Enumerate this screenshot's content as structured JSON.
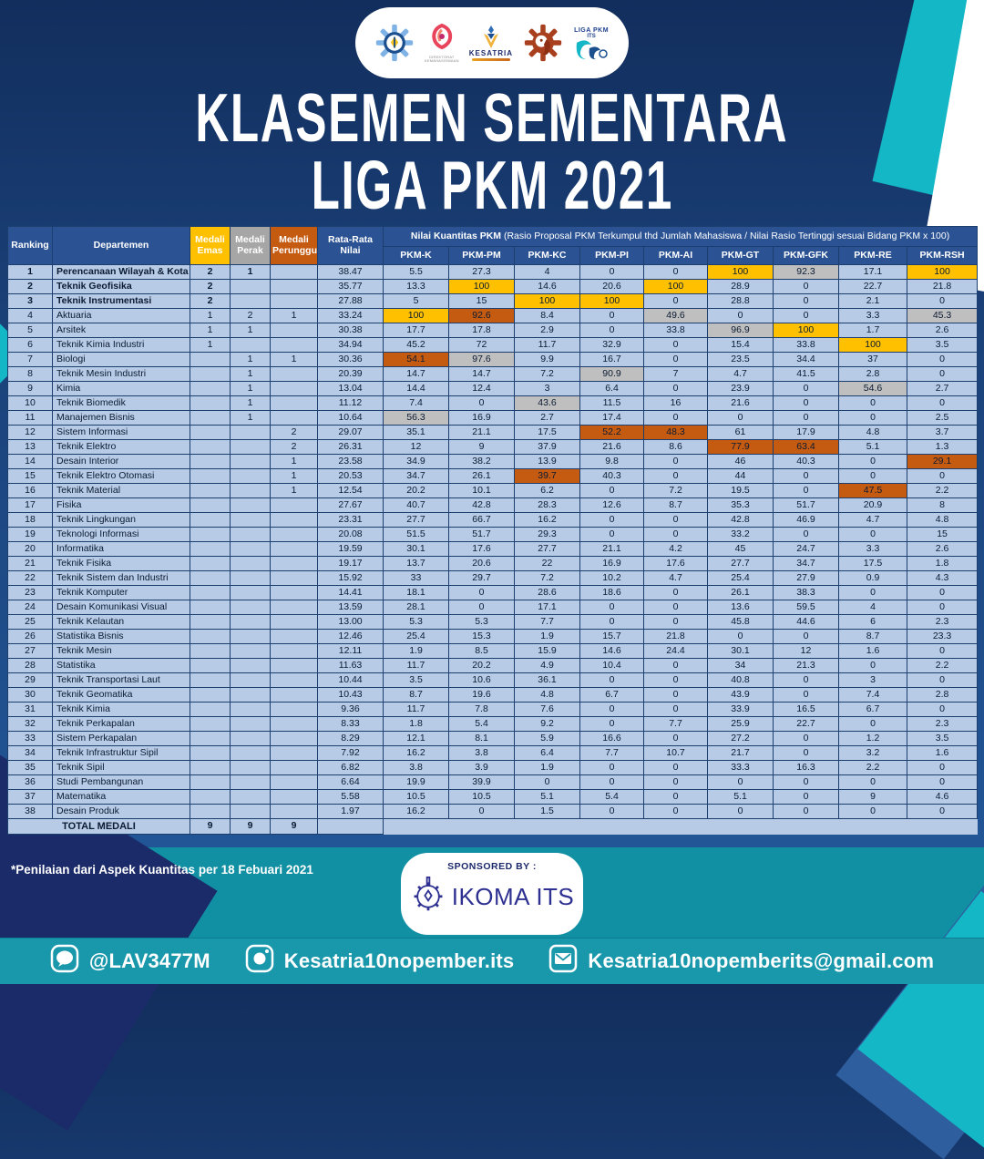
{
  "title": {
    "line1": "KLASEMEN SEMENTARA",
    "line2": "LIGA PKM 2021"
  },
  "logos": {
    "ditmawa_caption1": "DIREKTORAT",
    "ditmawa_caption2": "KEMAHASISWAAN",
    "kesatria_label": "KESATRIA",
    "liga_label1": "LIGA PKM",
    "liga_label2": "ITS"
  },
  "table": {
    "headers": {
      "ranking": "Ranking",
      "departemen": "Departemen",
      "emas": "Medali Emas",
      "perak": "Medali Perak",
      "perunggu": "Medali Perunggu",
      "rata": "Rata-Rata Nilai",
      "pkm_title": "Nilai Kuantitas PKM",
      "pkm_subtitle": " (Rasio Proposal PKM Terkumpul thd Jumlah Mahasiswa / Nilai Rasio Tertinggi sesuai Bidang PKM x 100)"
    },
    "pkm_columns": [
      "PKM-K",
      "PKM-PM",
      "PKM-KC",
      "PKM-PI",
      "PKM-AI",
      "PKM-GT",
      "PKM-GFK",
      "PKM-RE",
      "PKM-RSH"
    ],
    "rows": [
      {
        "rank": "1",
        "dept": "Perencanaan Wilayah & Kota",
        "emas": "2",
        "perak": "1",
        "perunggu": "",
        "rata": "38.47",
        "values": [
          "5.5",
          "27.3",
          "4",
          "0",
          "0",
          "100",
          "92.3",
          "17.1",
          "100"
        ],
        "hl": {
          "5": "g",
          "6": "s",
          "8": "g"
        },
        "bold": true
      },
      {
        "rank": "2",
        "dept": "Teknik Geofisika",
        "emas": "2",
        "perak": "",
        "perunggu": "",
        "rata": "35.77",
        "values": [
          "13.3",
          "100",
          "14.6",
          "20.6",
          "100",
          "28.9",
          "0",
          "22.7",
          "21.8"
        ],
        "hl": {
          "1": "g",
          "4": "g"
        },
        "bold": true
      },
      {
        "rank": "3",
        "dept": "Teknik Instrumentasi",
        "emas": "2",
        "perak": "",
        "perunggu": "",
        "rata": "27.88",
        "values": [
          "5",
          "15",
          "100",
          "100",
          "0",
          "28.8",
          "0",
          "2.1",
          "0"
        ],
        "hl": {
          "2": "g",
          "3": "g"
        },
        "bold": true
      },
      {
        "rank": "4",
        "dept": "Aktuaria",
        "emas": "1",
        "perak": "2",
        "perunggu": "1",
        "rata": "33.24",
        "values": [
          "100",
          "92.6",
          "8.4",
          "0",
          "49.6",
          "0",
          "0",
          "3.3",
          "45.3"
        ],
        "hl": {
          "0": "g",
          "1": "b",
          "4": "s",
          "8": "s"
        },
        "bold": false
      },
      {
        "rank": "5",
        "dept": "Arsitek",
        "emas": "1",
        "perak": "1",
        "perunggu": "",
        "rata": "30.38",
        "values": [
          "17.7",
          "17.8",
          "2.9",
          "0",
          "33.8",
          "96.9",
          "100",
          "1.7",
          "2.6"
        ],
        "hl": {
          "5": "s",
          "6": "g"
        },
        "bold": false
      },
      {
        "rank": "6",
        "dept": "Teknik Kimia Industri",
        "emas": "1",
        "perak": "",
        "perunggu": "",
        "rata": "34.94",
        "values": [
          "45.2",
          "72",
          "11.7",
          "32.9",
          "0",
          "15.4",
          "33.8",
          "100",
          "3.5"
        ],
        "hl": {
          "7": "g"
        },
        "bold": false
      },
      {
        "rank": "7",
        "dept": "Biologi",
        "emas": "",
        "perak": "1",
        "perunggu": "1",
        "rata": "30.36",
        "values": [
          "54.1",
          "97.6",
          "9.9",
          "16.7",
          "0",
          "23.5",
          "34.4",
          "37",
          "0"
        ],
        "hl": {
          "0": "b",
          "1": "s"
        },
        "bold": false
      },
      {
        "rank": "8",
        "dept": "Teknik Mesin Industri",
        "emas": "",
        "perak": "1",
        "perunggu": "",
        "rata": "20.39",
        "values": [
          "14.7",
          "14.7",
          "7.2",
          "90.9",
          "7",
          "4.7",
          "41.5",
          "2.8",
          "0"
        ],
        "hl": {
          "3": "s"
        },
        "bold": false
      },
      {
        "rank": "9",
        "dept": "Kimia",
        "emas": "",
        "perak": "1",
        "perunggu": "",
        "rata": "13.04",
        "values": [
          "14.4",
          "12.4",
          "3",
          "6.4",
          "0",
          "23.9",
          "0",
          "54.6",
          "2.7"
        ],
        "hl": {
          "7": "s"
        },
        "bold": false
      },
      {
        "rank": "10",
        "dept": "Teknik Biomedik",
        "emas": "",
        "perak": "1",
        "perunggu": "",
        "rata": "11.12",
        "values": [
          "7.4",
          "0",
          "43.6",
          "11.5",
          "16",
          "21.6",
          "0",
          "0",
          "0"
        ],
        "hl": {
          "2": "s"
        },
        "bold": false
      },
      {
        "rank": "11",
        "dept": "Manajemen Bisnis",
        "emas": "",
        "perak": "1",
        "perunggu": "",
        "rata": "10.64",
        "values": [
          "56.3",
          "16.9",
          "2.7",
          "17.4",
          "0",
          "0",
          "0",
          "0",
          "2.5"
        ],
        "hl": {
          "0": "s"
        },
        "bold": false
      },
      {
        "rank": "12",
        "dept": "Sistem Informasi",
        "emas": "",
        "perak": "",
        "perunggu": "2",
        "rata": "29.07",
        "values": [
          "35.1",
          "21.1",
          "17.5",
          "52.2",
          "48.3",
          "61",
          "17.9",
          "4.8",
          "3.7"
        ],
        "hl": {
          "3": "b",
          "4": "b"
        },
        "bold": false
      },
      {
        "rank": "13",
        "dept": "Teknik Elektro",
        "emas": "",
        "perak": "",
        "perunggu": "2",
        "rata": "26.31",
        "values": [
          "12",
          "9",
          "37.9",
          "21.6",
          "8.6",
          "77.9",
          "63.4",
          "5.1",
          "1.3"
        ],
        "hl": {
          "5": "b",
          "6": "b"
        },
        "bold": false
      },
      {
        "rank": "14",
        "dept": "Desain Interior",
        "emas": "",
        "perak": "",
        "perunggu": "1",
        "rata": "23.58",
        "values": [
          "34.9",
          "38.2",
          "13.9",
          "9.8",
          "0",
          "46",
          "40.3",
          "0",
          "29.1"
        ],
        "hl": {
          "8": "b"
        },
        "bold": false
      },
      {
        "rank": "15",
        "dept": "Teknik Elektro Otomasi",
        "emas": "",
        "perak": "",
        "perunggu": "1",
        "rata": "20.53",
        "values": [
          "34.7",
          "26.1",
          "39.7",
          "40.3",
          "0",
          "44",
          "0",
          "0",
          "0"
        ],
        "hl": {
          "2": "b"
        },
        "bold": false
      },
      {
        "rank": "16",
        "dept": "Teknik Material",
        "emas": "",
        "perak": "",
        "perunggu": "1",
        "rata": "12.54",
        "values": [
          "20.2",
          "10.1",
          "6.2",
          "0",
          "7.2",
          "19.5",
          "0",
          "47.5",
          "2.2"
        ],
        "hl": {
          "7": "b"
        },
        "bold": false
      },
      {
        "rank": "17",
        "dept": "Fisika",
        "emas": "",
        "perak": "",
        "perunggu": "",
        "rata": "27.67",
        "values": [
          "40.7",
          "42.8",
          "28.3",
          "12.6",
          "8.7",
          "35.3",
          "51.7",
          "20.9",
          "8"
        ],
        "hl": {},
        "bold": false
      },
      {
        "rank": "18",
        "dept": "Teknik Lingkungan",
        "emas": "",
        "perak": "",
        "perunggu": "",
        "rata": "23.31",
        "values": [
          "27.7",
          "66.7",
          "16.2",
          "0",
          "0",
          "42.8",
          "46.9",
          "4.7",
          "4.8"
        ],
        "hl": {},
        "bold": false
      },
      {
        "rank": "19",
        "dept": "Teknologi Informasi",
        "emas": "",
        "perak": "",
        "perunggu": "",
        "rata": "20.08",
        "values": [
          "51.5",
          "51.7",
          "29.3",
          "0",
          "0",
          "33.2",
          "0",
          "0",
          "15"
        ],
        "hl": {},
        "bold": false
      },
      {
        "rank": "20",
        "dept": "Informatika",
        "emas": "",
        "perak": "",
        "perunggu": "",
        "rata": "19.59",
        "values": [
          "30.1",
          "17.6",
          "27.7",
          "21.1",
          "4.2",
          "45",
          "24.7",
          "3.3",
          "2.6"
        ],
        "hl": {},
        "bold": false
      },
      {
        "rank": "21",
        "dept": "Teknik Fisika",
        "emas": "",
        "perak": "",
        "perunggu": "",
        "rata": "19.17",
        "values": [
          "13.7",
          "20.6",
          "22",
          "16.9",
          "17.6",
          "27.7",
          "34.7",
          "17.5",
          "1.8"
        ],
        "hl": {},
        "bold": false
      },
      {
        "rank": "22",
        "dept": "Teknik Sistem dan Industri",
        "emas": "",
        "perak": "",
        "perunggu": "",
        "rata": "15.92",
        "values": [
          "33",
          "29.7",
          "7.2",
          "10.2",
          "4.7",
          "25.4",
          "27.9",
          "0.9",
          "4.3"
        ],
        "hl": {},
        "bold": false
      },
      {
        "rank": "23",
        "dept": "Teknik Komputer",
        "emas": "",
        "perak": "",
        "perunggu": "",
        "rata": "14.41",
        "values": [
          "18.1",
          "0",
          "28.6",
          "18.6",
          "0",
          "26.1",
          "38.3",
          "0",
          "0"
        ],
        "hl": {},
        "bold": false
      },
      {
        "rank": "24",
        "dept": "Desain Komunikasi Visual",
        "emas": "",
        "perak": "",
        "perunggu": "",
        "rata": "13.59",
        "values": [
          "28.1",
          "0",
          "17.1",
          "0",
          "0",
          "13.6",
          "59.5",
          "4",
          "0"
        ],
        "hl": {},
        "bold": false
      },
      {
        "rank": "25",
        "dept": "Teknik Kelautan",
        "emas": "",
        "perak": "",
        "perunggu": "",
        "rata": "13.00",
        "values": [
          "5.3",
          "5.3",
          "7.7",
          "0",
          "0",
          "45.8",
          "44.6",
          "6",
          "2.3"
        ],
        "hl": {},
        "bold": false
      },
      {
        "rank": "26",
        "dept": "Statistika Bisnis",
        "emas": "",
        "perak": "",
        "perunggu": "",
        "rata": "12.46",
        "values": [
          "25.4",
          "15.3",
          "1.9",
          "15.7",
          "21.8",
          "0",
          "0",
          "8.7",
          "23.3"
        ],
        "hl": {},
        "bold": false
      },
      {
        "rank": "27",
        "dept": "Teknik Mesin",
        "emas": "",
        "perak": "",
        "perunggu": "",
        "rata": "12.11",
        "values": [
          "1.9",
          "8.5",
          "15.9",
          "14.6",
          "24.4",
          "30.1",
          "12",
          "1.6",
          "0"
        ],
        "hl": {},
        "bold": false
      },
      {
        "rank": "28",
        "dept": "Statistika",
        "emas": "",
        "perak": "",
        "perunggu": "",
        "rata": "11.63",
        "values": [
          "11.7",
          "20.2",
          "4.9",
          "10.4",
          "0",
          "34",
          "21.3",
          "0",
          "2.2"
        ],
        "hl": {},
        "bold": false
      },
      {
        "rank": "29",
        "dept": "Teknik Transportasi Laut",
        "emas": "",
        "perak": "",
        "perunggu": "",
        "rata": "10.44",
        "values": [
          "3.5",
          "10.6",
          "36.1",
          "0",
          "0",
          "40.8",
          "0",
          "3",
          "0"
        ],
        "hl": {},
        "bold": false
      },
      {
        "rank": "30",
        "dept": "Teknik Geomatika",
        "emas": "",
        "perak": "",
        "perunggu": "",
        "rata": "10.43",
        "values": [
          "8.7",
          "19.6",
          "4.8",
          "6.7",
          "0",
          "43.9",
          "0",
          "7.4",
          "2.8"
        ],
        "hl": {},
        "bold": false
      },
      {
        "rank": "31",
        "dept": "Teknik Kimia",
        "emas": "",
        "perak": "",
        "perunggu": "",
        "rata": "9.36",
        "values": [
          "11.7",
          "7.8",
          "7.6",
          "0",
          "0",
          "33.9",
          "16.5",
          "6.7",
          "0"
        ],
        "hl": {},
        "bold": false
      },
      {
        "rank": "32",
        "dept": "Teknik Perkapalan",
        "emas": "",
        "perak": "",
        "perunggu": "",
        "rata": "8.33",
        "values": [
          "1.8",
          "5.4",
          "9.2",
          "0",
          "7.7",
          "25.9",
          "22.7",
          "0",
          "2.3"
        ],
        "hl": {},
        "bold": false
      },
      {
        "rank": "33",
        "dept": "Sistem Perkapalan",
        "emas": "",
        "perak": "",
        "perunggu": "",
        "rata": "8.29",
        "values": [
          "12.1",
          "8.1",
          "5.9",
          "16.6",
          "0",
          "27.2",
          "0",
          "1.2",
          "3.5"
        ],
        "hl": {},
        "bold": false
      },
      {
        "rank": "34",
        "dept": "Teknik Infrastruktur Sipil",
        "emas": "",
        "perak": "",
        "perunggu": "",
        "rata": "7.92",
        "values": [
          "16.2",
          "3.8",
          "6.4",
          "7.7",
          "10.7",
          "21.7",
          "0",
          "3.2",
          "1.6"
        ],
        "hl": {},
        "bold": false
      },
      {
        "rank": "35",
        "dept": "Teknik Sipil",
        "emas": "",
        "perak": "",
        "perunggu": "",
        "rata": "6.82",
        "values": [
          "3.8",
          "3.9",
          "1.9",
          "0",
          "0",
          "33.3",
          "16.3",
          "2.2",
          "0"
        ],
        "hl": {},
        "bold": false
      },
      {
        "rank": "36",
        "dept": "Studi Pembangunan",
        "emas": "",
        "perak": "",
        "perunggu": "",
        "rata": "6.64",
        "values": [
          "19.9",
          "39.9",
          "0",
          "0",
          "0",
          "0",
          "0",
          "0",
          "0"
        ],
        "hl": {},
        "bold": false
      },
      {
        "rank": "37",
        "dept": "Matematika",
        "emas": "",
        "perak": "",
        "perunggu": "",
        "rata": "5.58",
        "values": [
          "10.5",
          "10.5",
          "5.1",
          "5.4",
          "0",
          "5.1",
          "0",
          "9",
          "4.6"
        ],
        "hl": {},
        "bold": false
      },
      {
        "rank": "38",
        "dept": "Desain Produk",
        "emas": "",
        "perak": "",
        "perunggu": "",
        "rata": "1.97",
        "values": [
          "16.2",
          "0",
          "1.5",
          "0",
          "0",
          "0",
          "0",
          "0",
          "0"
        ],
        "hl": {},
        "bold": false
      }
    ],
    "total": {
      "label": "TOTAL MEDALI",
      "emas": "9",
      "perak": "9",
      "perunggu": "9"
    }
  },
  "footnote": "*Penilaian dari Aspek Kuantitas per 18 Febuari 2021",
  "sponsor": {
    "label": "SPONSORED BY :",
    "name": "IKOMA ITS"
  },
  "footer": {
    "items": [
      {
        "icon": "line-icon",
        "label": "@LAV3477M"
      },
      {
        "icon": "instagram-icon",
        "label": "Kesatria10nopember.its"
      },
      {
        "icon": "email-icon",
        "label": "Kesatria10nopemberits@gmail.com"
      }
    ]
  },
  "colors": {
    "gold": "#FFC000",
    "silver": "#BFBFBF",
    "bronze": "#C55A11",
    "header_navy": "#2B5394",
    "row_blue": "#B7CBE6",
    "background_navy": "#1A4078",
    "teal": "#14B7C6",
    "footer_teal": "#1190A4"
  }
}
